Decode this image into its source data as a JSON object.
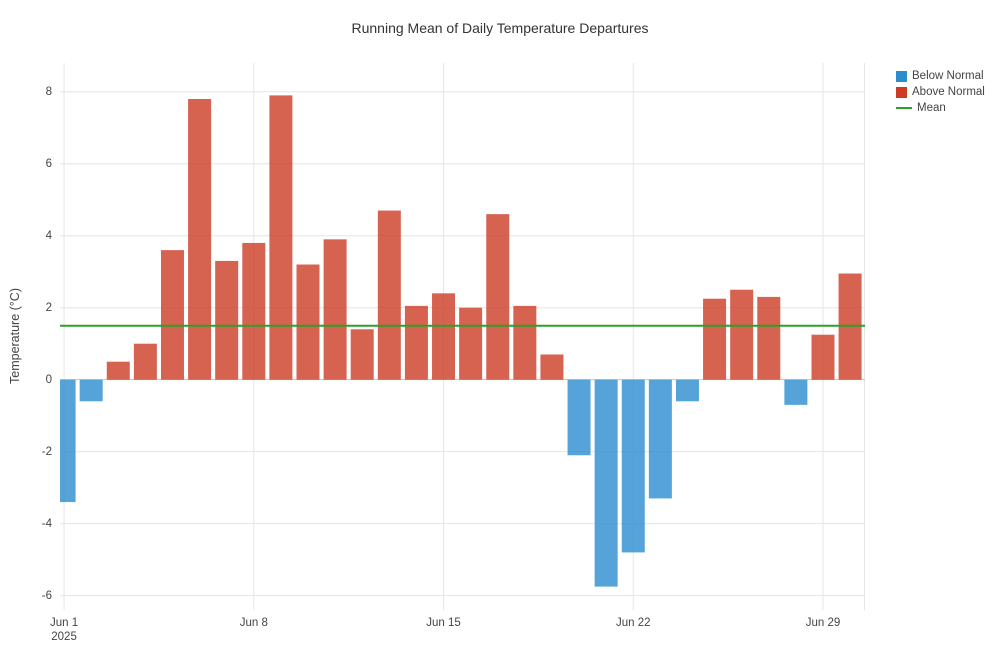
{
  "title": "Running Mean of Daily Temperature Departures",
  "legend": {
    "below_normal": "Below Normal",
    "above_normal": "Above Normal",
    "mean": "Mean"
  },
  "colors": {
    "below_normal": "#2b8cce",
    "above_normal": "#cc3b24",
    "mean_line": "#2ca02c",
    "grid": "#e6e6e6",
    "zero_line": "#c4c4c4",
    "tick_text": "#444444",
    "title_text": "#333333"
  },
  "chart_data": {
    "type": "bar",
    "title": "Running Mean of Daily Temperature Departures",
    "xlabel": "",
    "ylabel": "Temperature (°C)",
    "x": [
      "Jun 1",
      "Jun 2",
      "Jun 3",
      "Jun 4",
      "Jun 5",
      "Jun 6",
      "Jun 7",
      "Jun 8",
      "Jun 9",
      "Jun 10",
      "Jun 11",
      "Jun 12",
      "Jun 13",
      "Jun 14",
      "Jun 15",
      "Jun 16",
      "Jun 17",
      "Jun 18",
      "Jun 19",
      "Jun 20",
      "Jun 21",
      "Jun 22",
      "Jun 23",
      "Jun 24",
      "Jun 25",
      "Jun 26",
      "Jun 27",
      "Jun 28",
      "Jun 29",
      "Jun 30"
    ],
    "values": [
      -3.4,
      -0.6,
      0.5,
      1.0,
      3.6,
      7.8,
      3.3,
      3.8,
      7.9,
      3.2,
      3.9,
      1.4,
      4.7,
      2.05,
      2.4,
      2.0,
      4.6,
      2.05,
      0.7,
      -2.1,
      -5.75,
      -4.8,
      -3.3,
      -0.6,
      2.25,
      2.5,
      2.3,
      -0.7,
      1.25,
      2.95
    ],
    "series_rule": "values >= 0 colored Above Normal (red), values < 0 colored Below Normal (blue)",
    "mean_line_value": 1.5,
    "ylim": [
      -6.4,
      8.8
    ],
    "yticks": [
      -6,
      -4,
      -2,
      0,
      2,
      4,
      6,
      8
    ],
    "xticks": [
      {
        "day_index": 0,
        "label": "Jun 1",
        "sub_label": "2025"
      },
      {
        "day_index": 7,
        "label": "Jun 8"
      },
      {
        "day_index": 14,
        "label": "Jun 15"
      },
      {
        "day_index": 21,
        "label": "Jun 22"
      },
      {
        "day_index": 28,
        "label": "Jun 29"
      }
    ],
    "grid": true,
    "legend_position": "top-right"
  }
}
